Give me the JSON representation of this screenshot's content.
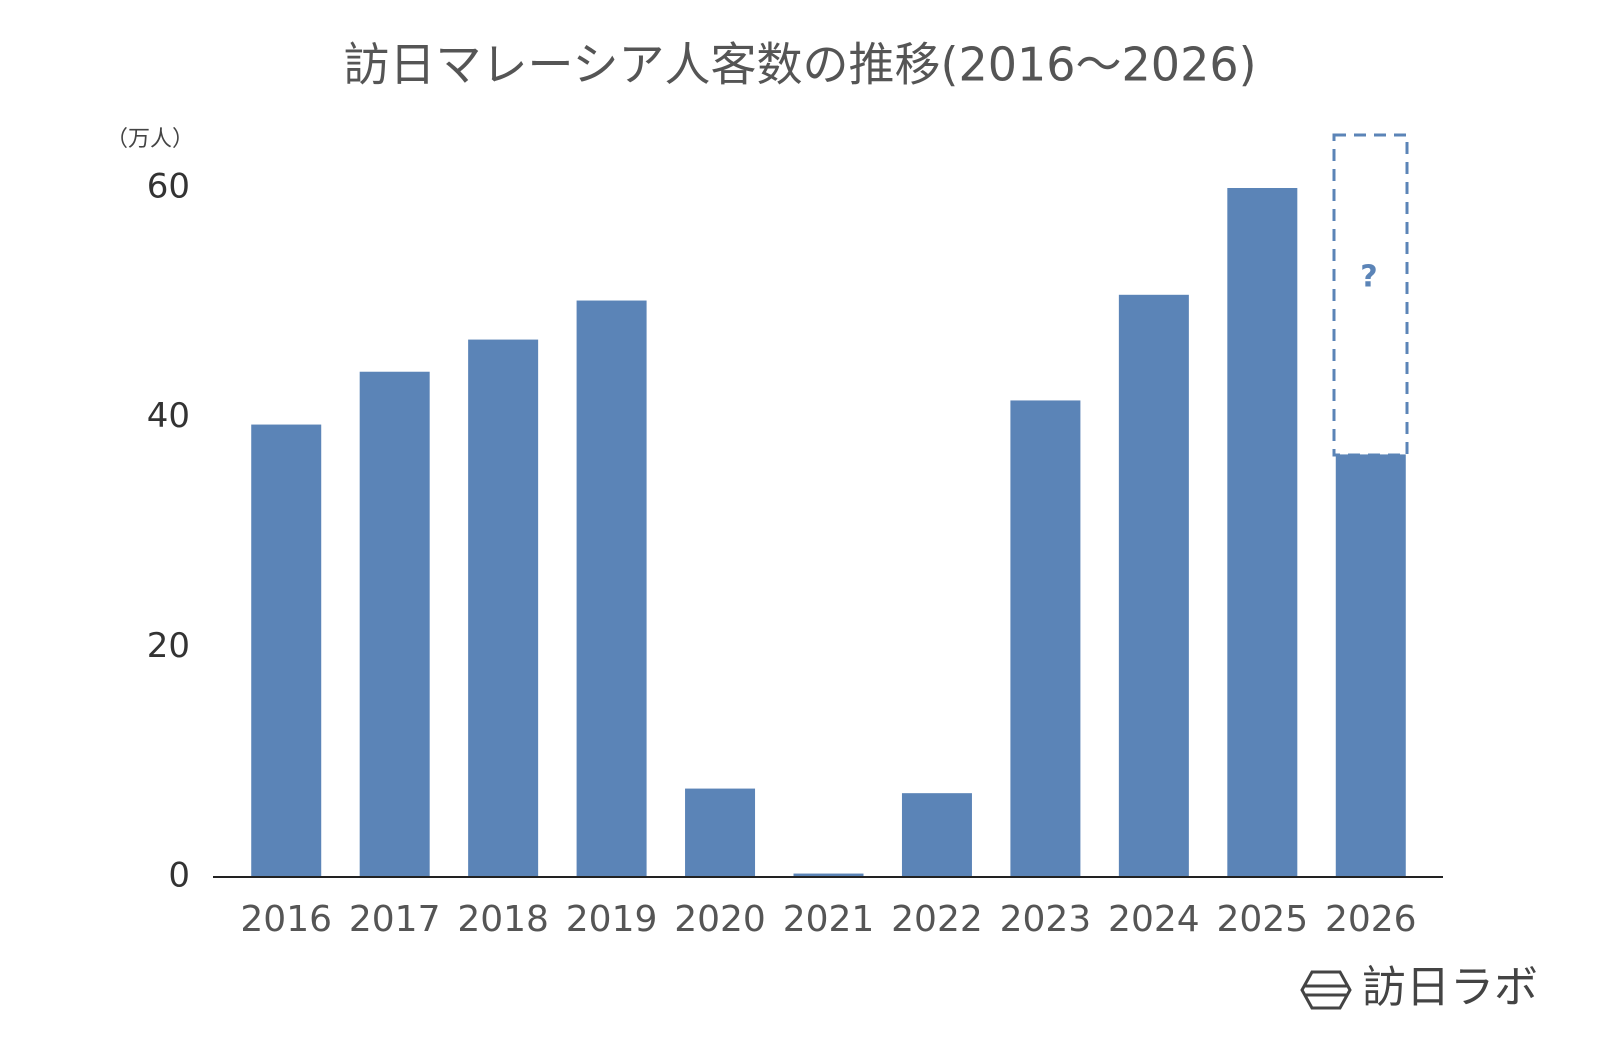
{
  "chart_data": {
    "type": "bar",
    "title": "訪日マレーシア人客数の推移(2016～2026)",
    "y_axis_label": "（万人）",
    "categories": [
      "2016",
      "2017",
      "2018",
      "2019",
      "2020",
      "2021",
      "2022",
      "2023",
      "2024",
      "2025",
      "2026"
    ],
    "values": [
      39.4,
      44.0,
      46.8,
      50.2,
      7.7,
      0.3,
      7.3,
      41.5,
      50.7,
      60.0,
      36.8
    ],
    "color": "#5b84b7",
    "ylim": [
      0,
      65
    ],
    "yticks": [
      0,
      20,
      40,
      60
    ],
    "grid": false,
    "annotation": "?",
    "brand": "訪日ラボ"
  }
}
